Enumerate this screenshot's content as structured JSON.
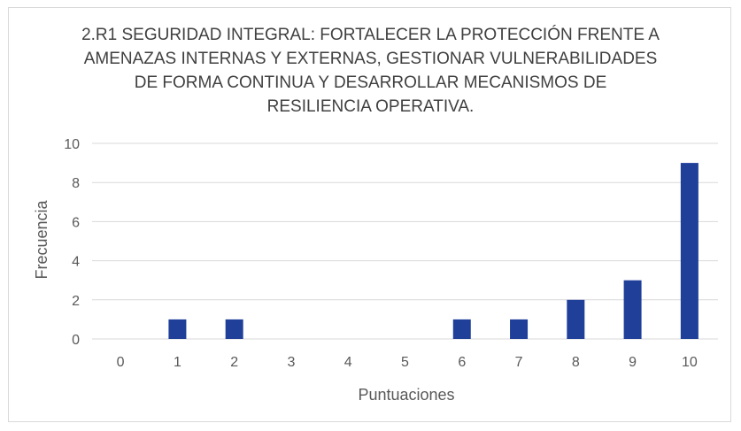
{
  "chart_data": {
    "type": "bar",
    "title_lines": [
      "2.R1 SEGURIDAD INTEGRAL: FORTALECER LA PROTECCIÓN FRENTE A",
      "AMENAZAS INTERNAS Y EXTERNAS, GESTIONAR VULNERABILIDADES",
      "DE FORMA CONTINUA Y DESARROLLAR MECANISMOS DE",
      "RESILIENCIA OPERATIVA."
    ],
    "categories": [
      "0",
      "1",
      "2",
      "3",
      "4",
      "5",
      "6",
      "7",
      "8",
      "9",
      "10"
    ],
    "values": [
      0,
      1,
      1,
      0,
      0,
      0,
      1,
      1,
      2,
      3,
      9
    ],
    "xlabel": "Puntuaciones",
    "ylabel": "Frecuencia",
    "ylim": [
      0,
      10
    ],
    "yticks": [
      "0",
      "2",
      "4",
      "6",
      "8",
      "10"
    ],
    "bar_color": "#1f3f99",
    "grid": true,
    "legend": "none"
  }
}
